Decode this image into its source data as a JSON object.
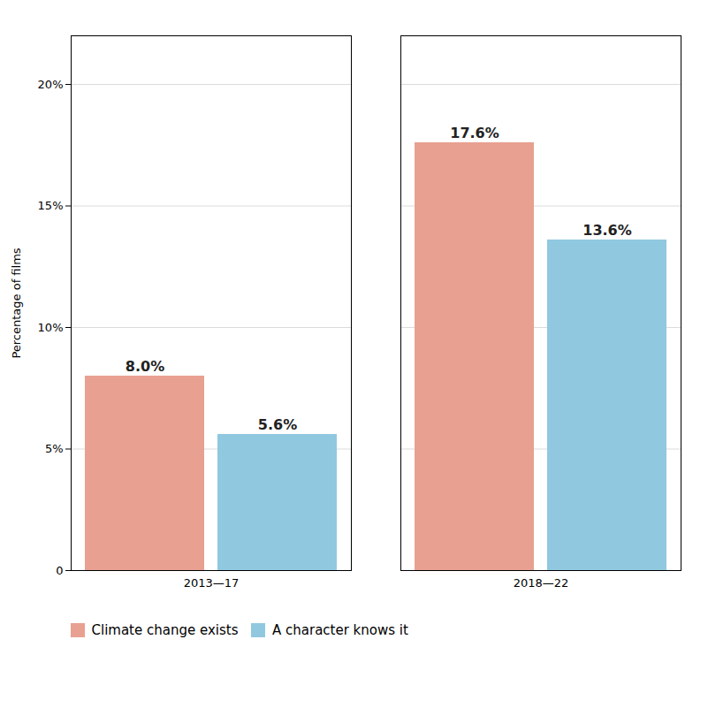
{
  "chart_data": {
    "type": "bar",
    "categories": [
      "2013—17",
      "2018—22"
    ],
    "series": [
      {
        "name": "Climate change exists",
        "color": "#E8A090",
        "values": [
          8.0,
          17.6
        ],
        "value_labels": [
          "8.0%",
          "17.6%"
        ]
      },
      {
        "name": "A character knows it",
        "color": "#90C8E0",
        "values": [
          5.6,
          13.6
        ],
        "value_labels": [
          "5.6%",
          "13.6%"
        ]
      }
    ],
    "ylabel": "Percentage of films",
    "ylim": [
      0,
      22
    ],
    "yticks": [
      0,
      {
        "value": 5,
        "label": "5%"
      },
      {
        "value": 10,
        "label": "10%"
      },
      {
        "value": 15,
        "label": "15%"
      },
      {
        "value": 20,
        "label": "20%"
      }
    ],
    "grid": true,
    "data_labels": true,
    "legend": "bottom"
  }
}
